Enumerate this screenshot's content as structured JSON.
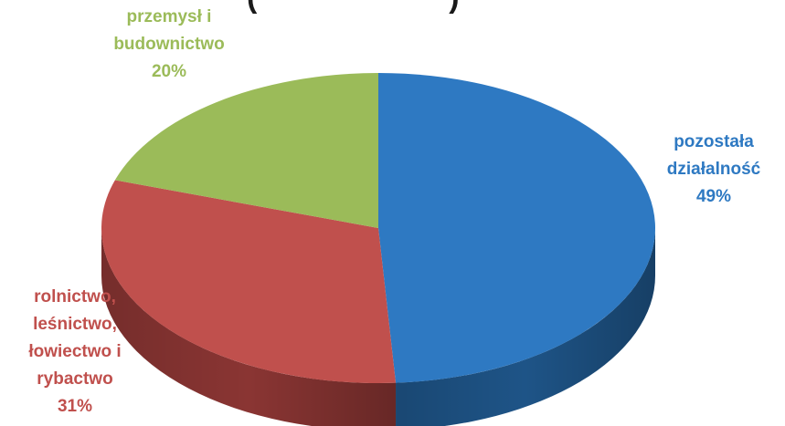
{
  "chart_data": {
    "type": "pie",
    "title": "",
    "title_fragment": "(                    )",
    "slices": [
      {
        "label_lines": [
          "pozostała",
          "działalność"
        ],
        "value": 49,
        "value_label": "49%",
        "color": "#2e79c2",
        "side_color": "#1e5487"
      },
      {
        "label_lines": [
          "rolnictwo,",
          "leśnictwo,",
          "łowiectwo i",
          "rybactwo"
        ],
        "value": 31,
        "value_label": "31%",
        "color": "#c0504d",
        "side_color": "#8a3533"
      },
      {
        "label_lines": [
          "przemysł i",
          "budownictwo"
        ],
        "value": 20,
        "value_label": "20%",
        "color": "#9bbb59",
        "side_color": "#6d8a3a"
      }
    ],
    "style": "3d-pie",
    "legend": "none"
  }
}
